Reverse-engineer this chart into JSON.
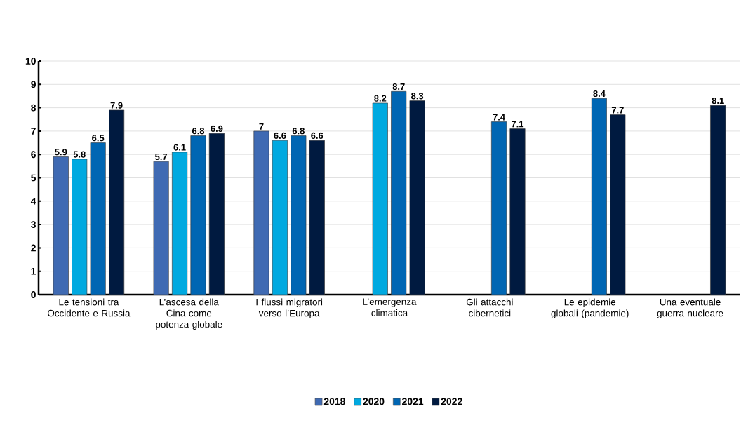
{
  "chart_data": {
    "type": "bar",
    "categories": [
      "Le tensioni tra Occidente e Russia",
      "L’ascesa della Cina come potenza globale",
      "I flussi migratori verso l’Europa",
      "L’emergenza climatica",
      "Gli attacchi cibernetici",
      "Le epidemie globali (pandemie)",
      "Una eventuale guerra nucleare"
    ],
    "series": [
      {
        "name": "2018",
        "color": "#3f6ab3",
        "values": [
          5.9,
          5.7,
          7,
          null,
          null,
          null,
          null
        ]
      },
      {
        "name": "2020",
        "color": "#00a9e0",
        "values": [
          5.8,
          6.1,
          6.6,
          8.2,
          null,
          null,
          null
        ]
      },
      {
        "name": "2021",
        "color": "#0066b3",
        "values": [
          6.5,
          6.8,
          6.8,
          8.7,
          7.4,
          8.4,
          null
        ]
      },
      {
        "name": "2022",
        "color": "#001a40",
        "values": [
          7.9,
          6.9,
          6.6,
          8.3,
          7.1,
          7.7,
          8.1
        ]
      }
    ],
    "ylim": [
      0,
      10
    ],
    "yticks": [
      0,
      1,
      2,
      3,
      4,
      5,
      6,
      7,
      8,
      9,
      10
    ],
    "grid": "y",
    "legend": "bottom",
    "data_labels": true
  }
}
